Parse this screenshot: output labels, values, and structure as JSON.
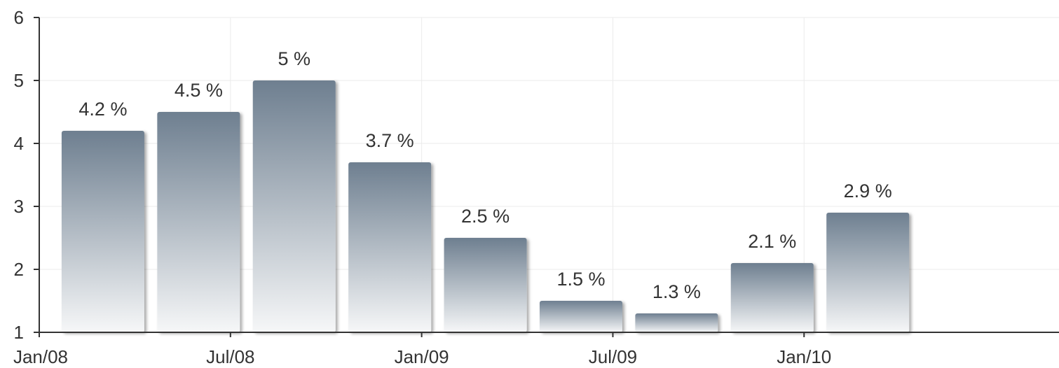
{
  "chart_data": {
    "type": "bar",
    "title": "",
    "xlabel": "",
    "ylabel": "",
    "ylim": [
      1,
      6
    ],
    "yticks": [
      1,
      2,
      3,
      4,
      5,
      6
    ],
    "x_axis": {
      "min": "2008-01",
      "max": "2010-09",
      "ticks": [
        "2008-01",
        "2008-07",
        "2009-01",
        "2009-07",
        "2010-01"
      ],
      "tick_labels": [
        "Jan/08",
        "Jul/08",
        "Jan/09",
        "Jul/09",
        "Jan/10"
      ]
    },
    "x": [
      "2008-03",
      "2008-06",
      "2008-09",
      "2008-12",
      "2009-03",
      "2009-06",
      "2009-09",
      "2009-12",
      "2010-03"
    ],
    "values": [
      4.2,
      4.5,
      5,
      3.7,
      2.5,
      1.5,
      1.3,
      2.1,
      2.9
    ],
    "value_labels": [
      "4.2 %",
      "4.5 %",
      "5 %",
      "3.7 %",
      "2.5 %",
      "1.5 %",
      "1.3 %",
      "2.1 %",
      "2.9 %"
    ],
    "grid": true,
    "legend": "none",
    "colors": {
      "bar_top": "#6e7f90",
      "bar_bottom": "#f6f7f8",
      "axis": "#333333",
      "grid": "#ebebeb"
    }
  }
}
